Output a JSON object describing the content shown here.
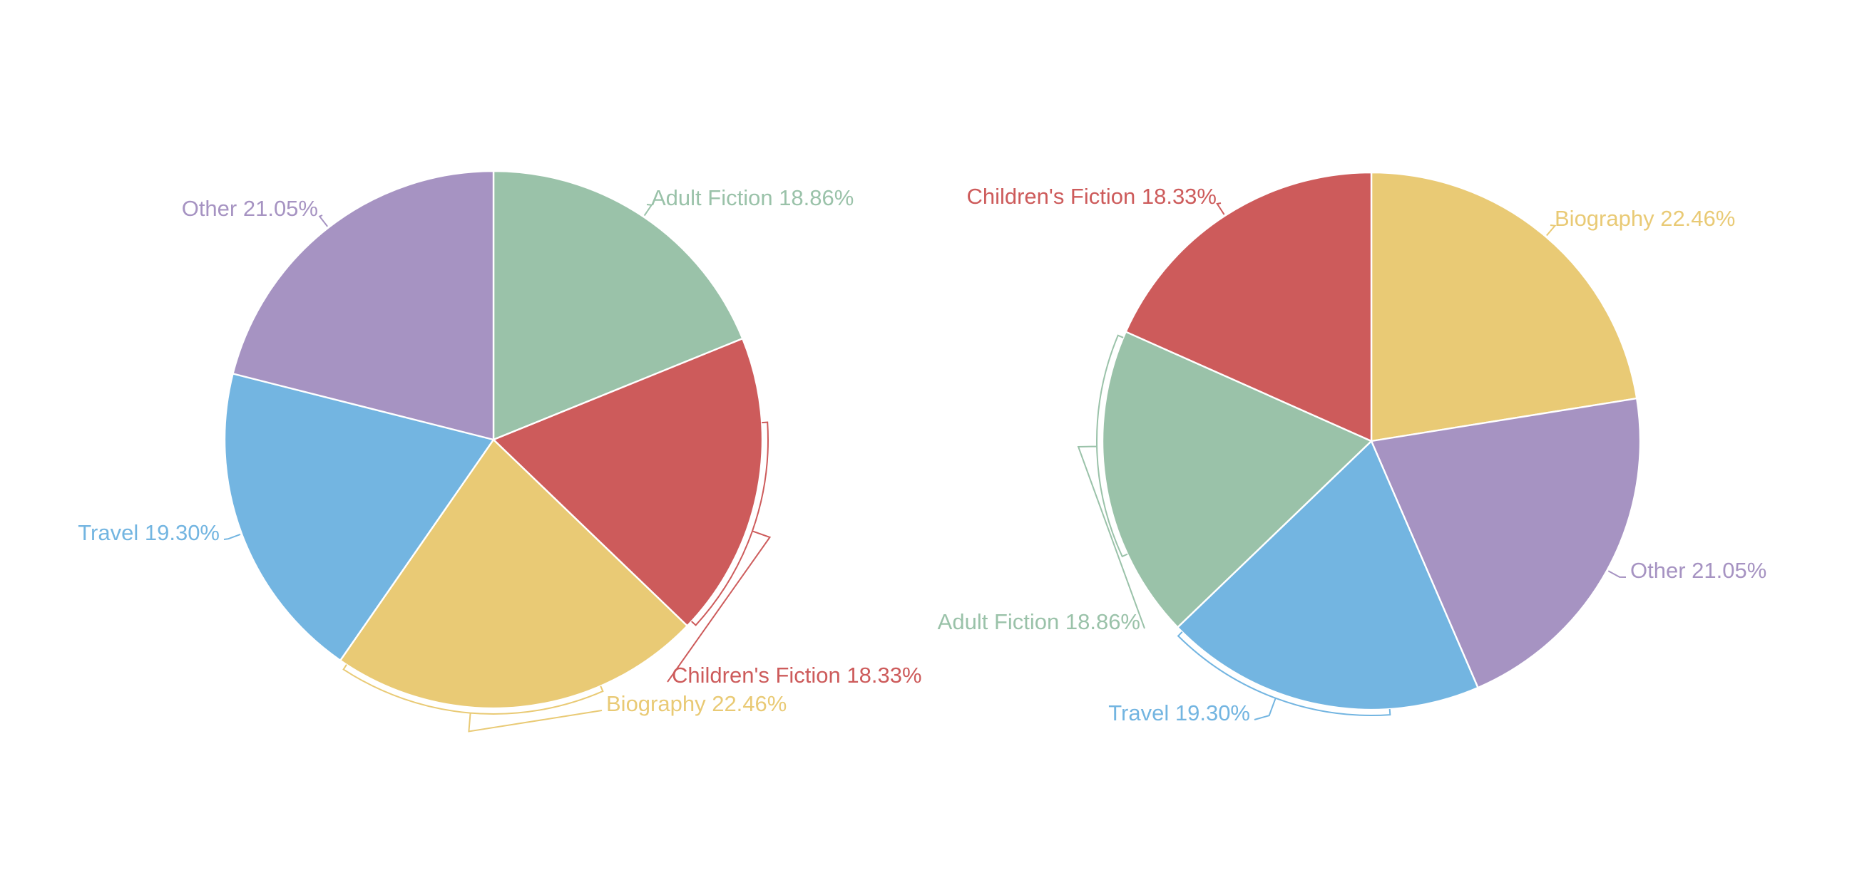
{
  "chart_data": [
    {
      "type": "pie",
      "title": "",
      "start_angle_deg": 0,
      "direction": "clockwise",
      "slices": [
        {
          "label": "Adult Fiction",
          "percent": 18.86,
          "percent_text": "18.86%",
          "color": "#9ac2a9"
        },
        {
          "label": "Children's Fiction",
          "percent": 18.33,
          "percent_text": "18.33%",
          "color": "#cd5b5b"
        },
        {
          "label": "Biography",
          "percent": 22.46,
          "percent_text": "22.46%",
          "color": "#e9ca75"
        },
        {
          "label": "Travel",
          "percent": 19.3,
          "percent_text": "19.30%",
          "color": "#73b5e1"
        },
        {
          "label": "Other",
          "percent": 21.05,
          "percent_text": "21.05%",
          "color": "#a693c2"
        }
      ]
    },
    {
      "type": "pie",
      "title": "",
      "start_angle_deg": 0,
      "direction": "clockwise",
      "slices": [
        {
          "label": "Biography",
          "percent": 22.46,
          "percent_text": "22.46%",
          "color": "#e9ca75"
        },
        {
          "label": "Other",
          "percent": 21.05,
          "percent_text": "21.05%",
          "color": "#a693c2"
        },
        {
          "label": "Travel",
          "percent": 19.3,
          "percent_text": "19.30%",
          "color": "#73b5e1"
        },
        {
          "label": "Adult Fiction",
          "percent": 18.86,
          "percent_text": "18.86%",
          "color": "#9ac2a9"
        },
        {
          "label": "Children's Fiction",
          "percent": 18.33,
          "percent_text": "18.33%",
          "color": "#cd5b5b"
        }
      ]
    }
  ]
}
